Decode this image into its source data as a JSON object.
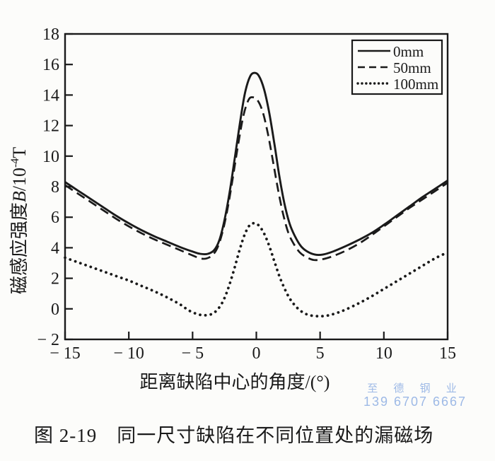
{
  "figure": {
    "caption": "图 2-19　同一尺寸缺陷在不同位置处的漏磁场",
    "watermark_line1": "至 德 钢 业",
    "watermark_line2": "139 6707 6667",
    "watermark_color": "#9db9e6",
    "ink_color": "#1a1a1a",
    "paper_color": "#fcfcfa"
  },
  "chart_data": {
    "type": "line",
    "title": "",
    "xlabel": "距离缺陷中心的角度/(°)",
    "ylabel": "磁感应强度B/10⁻⁴T",
    "ylabel_parts": [
      "磁感应强度",
      "B",
      "/10",
      "-4",
      "T"
    ],
    "xlim": [
      -15,
      15
    ],
    "ylim": [
      -2,
      18
    ],
    "grid": false,
    "legend_position": "top-right",
    "xticks": [
      {
        "v": -15,
        "label": "− 15"
      },
      {
        "v": -10,
        "label": "− 10"
      },
      {
        "v": -5,
        "label": "− 5"
      },
      {
        "v": 0,
        "label": "0"
      },
      {
        "v": 5,
        "label": "5"
      },
      {
        "v": 10,
        "label": "10"
      },
      {
        "v": 15,
        "label": "15"
      }
    ],
    "yticks": [
      {
        "v": -2,
        "label": "− 2"
      },
      {
        "v": 0,
        "label": "0"
      },
      {
        "v": 2,
        "label": "2"
      },
      {
        "v": 4,
        "label": "4"
      },
      {
        "v": 6,
        "label": "6"
      },
      {
        "v": 8,
        "label": "8"
      },
      {
        "v": 10,
        "label": "10"
      },
      {
        "v": 12,
        "label": "12"
      },
      {
        "v": 14,
        "label": "14"
      },
      {
        "v": 16,
        "label": "16"
      },
      {
        "v": 18,
        "label": "18"
      }
    ],
    "series": [
      {
        "name": "0mm",
        "style": "solid",
        "color": "#1a1a1a",
        "points": [
          [
            -15,
            8.3
          ],
          [
            -14,
            7.75
          ],
          [
            -13,
            7.2
          ],
          [
            -12,
            6.65
          ],
          [
            -11,
            6.1
          ],
          [
            -10,
            5.6
          ],
          [
            -9,
            5.15
          ],
          [
            -8,
            4.75
          ],
          [
            -7,
            4.4
          ],
          [
            -6,
            4.05
          ],
          [
            -5,
            3.75
          ],
          [
            -4.4,
            3.6
          ],
          [
            -3.8,
            3.6
          ],
          [
            -3.3,
            3.85
          ],
          [
            -2.9,
            4.5
          ],
          [
            -2.5,
            5.8
          ],
          [
            -2.1,
            7.6
          ],
          [
            -1.7,
            9.8
          ],
          [
            -1.3,
            12.1
          ],
          [
            -0.9,
            14.1
          ],
          [
            -0.5,
            15.2
          ],
          [
            -0.15,
            15.45
          ],
          [
            0.2,
            15.25
          ],
          [
            0.6,
            14.4
          ],
          [
            1,
            12.9
          ],
          [
            1.4,
            10.9
          ],
          [
            1.8,
            8.7
          ],
          [
            2.2,
            6.9
          ],
          [
            2.6,
            5.6
          ],
          [
            3,
            4.8
          ],
          [
            3.5,
            4.1
          ],
          [
            4,
            3.75
          ],
          [
            4.6,
            3.55
          ],
          [
            5.2,
            3.55
          ],
          [
            6,
            3.75
          ],
          [
            7,
            4.1
          ],
          [
            8,
            4.5
          ],
          [
            9,
            4.95
          ],
          [
            10,
            5.5
          ],
          [
            11,
            6.1
          ],
          [
            12,
            6.7
          ],
          [
            13,
            7.3
          ],
          [
            14,
            7.85
          ],
          [
            15,
            8.4
          ]
        ]
      },
      {
        "name": "50mm",
        "style": "dashed",
        "color": "#1a1a1a",
        "points": [
          [
            -15,
            8.1
          ],
          [
            -14,
            7.55
          ],
          [
            -13,
            7.0
          ],
          [
            -12,
            6.45
          ],
          [
            -11,
            5.9
          ],
          [
            -10,
            5.4
          ],
          [
            -9,
            4.95
          ],
          [
            -8,
            4.55
          ],
          [
            -7,
            4.2
          ],
          [
            -6,
            3.85
          ],
          [
            -5,
            3.5
          ],
          [
            -4.4,
            3.3
          ],
          [
            -3.9,
            3.3
          ],
          [
            -3.4,
            3.55
          ],
          [
            -3,
            4.1
          ],
          [
            -2.6,
            5.2
          ],
          [
            -2.2,
            6.8
          ],
          [
            -1.8,
            8.8
          ],
          [
            -1.4,
            10.9
          ],
          [
            -1,
            12.7
          ],
          [
            -0.6,
            13.7
          ],
          [
            -0.25,
            13.85
          ],
          [
            0.1,
            13.65
          ],
          [
            0.5,
            12.9
          ],
          [
            0.9,
            11.5
          ],
          [
            1.3,
            9.7
          ],
          [
            1.7,
            7.8
          ],
          [
            2.1,
            6.2
          ],
          [
            2.5,
            5.0
          ],
          [
            2.9,
            4.3
          ],
          [
            3.4,
            3.7
          ],
          [
            3.9,
            3.4
          ],
          [
            4.5,
            3.2
          ],
          [
            5.2,
            3.25
          ],
          [
            6,
            3.45
          ],
          [
            7,
            3.8
          ],
          [
            8,
            4.25
          ],
          [
            9,
            4.8
          ],
          [
            10,
            5.4
          ],
          [
            11,
            6.0
          ],
          [
            12,
            6.6
          ],
          [
            13,
            7.15
          ],
          [
            14,
            7.7
          ],
          [
            15,
            8.25
          ]
        ]
      },
      {
        "name": "100mm",
        "style": "dotted",
        "color": "#1a1a1a",
        "points": [
          [
            -15,
            3.35
          ],
          [
            -14,
            3.05
          ],
          [
            -13,
            2.75
          ],
          [
            -12,
            2.45
          ],
          [
            -11,
            2.15
          ],
          [
            -10,
            1.85
          ],
          [
            -9,
            1.5
          ],
          [
            -8,
            1.15
          ],
          [
            -7,
            0.75
          ],
          [
            -6,
            0.3
          ],
          [
            -5.3,
            -0.1
          ],
          [
            -4.6,
            -0.35
          ],
          [
            -4,
            -0.42
          ],
          [
            -3.4,
            -0.3
          ],
          [
            -2.9,
            0.1
          ],
          [
            -2.5,
            0.7
          ],
          [
            -2.1,
            1.6
          ],
          [
            -1.7,
            2.7
          ],
          [
            -1.3,
            3.9
          ],
          [
            -0.9,
            4.9
          ],
          [
            -0.5,
            5.5
          ],
          [
            -0.15,
            5.6
          ],
          [
            0.2,
            5.45
          ],
          [
            0.6,
            4.95
          ],
          [
            1,
            4.15
          ],
          [
            1.4,
            3.15
          ],
          [
            1.8,
            2.15
          ],
          [
            2.2,
            1.35
          ],
          [
            2.6,
            0.7
          ],
          [
            3,
            0.25
          ],
          [
            3.5,
            -0.15
          ],
          [
            4.1,
            -0.4
          ],
          [
            4.8,
            -0.48
          ],
          [
            5.5,
            -0.45
          ],
          [
            6.2,
            -0.3
          ],
          [
            7,
            -0.05
          ],
          [
            8,
            0.35
          ],
          [
            9,
            0.8
          ],
          [
            10,
            1.3
          ],
          [
            11,
            1.8
          ],
          [
            12,
            2.3
          ],
          [
            13,
            2.8
          ],
          [
            14,
            3.3
          ],
          [
            15,
            3.7
          ]
        ]
      }
    ]
  }
}
